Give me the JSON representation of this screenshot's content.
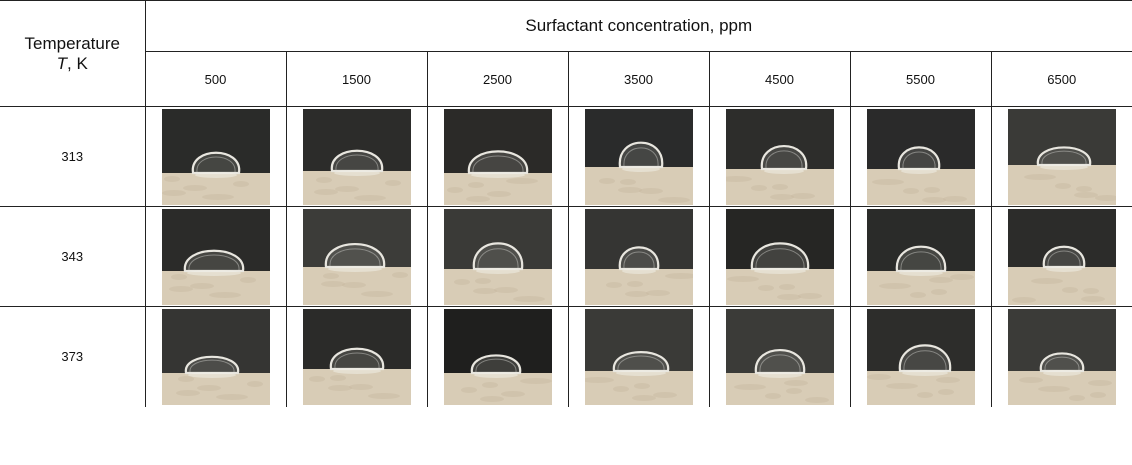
{
  "header": {
    "row_label_line1": "Temperature",
    "row_label_symbol": "T",
    "row_label_unit": ", K",
    "column_group_title": "Surfactant concentration, ppm",
    "concentrations": [
      "500",
      "1500",
      "2500",
      "3500",
      "4500",
      "5500",
      "6500"
    ]
  },
  "rows": [
    {
      "temperature": "313"
    },
    {
      "temperature": "343"
    },
    {
      "temperature": "373"
    }
  ],
  "colors": {
    "background_dark": "#2b2b2a",
    "substrate": "#d8ccb6",
    "droplet_edge": "#e8e6df",
    "border": "#222222"
  },
  "image_alt": "droplet contact angle photo"
}
